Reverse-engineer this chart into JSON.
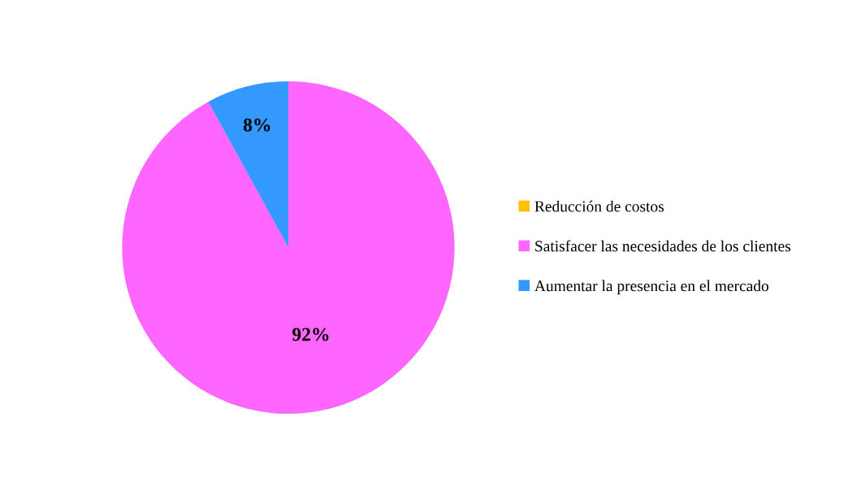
{
  "chart_data": {
    "type": "pie",
    "categories": [
      "Reducción de costos",
      "Satisfacer las necesidades de los clientes",
      "Aumentar la presencia en el mercado"
    ],
    "values": [
      0,
      92,
      8
    ],
    "colors": [
      "#ffc000",
      "#ff66ff",
      "#3399ff"
    ],
    "value_labels": [
      null,
      "92%",
      "8%"
    ],
    "legend": "right"
  }
}
